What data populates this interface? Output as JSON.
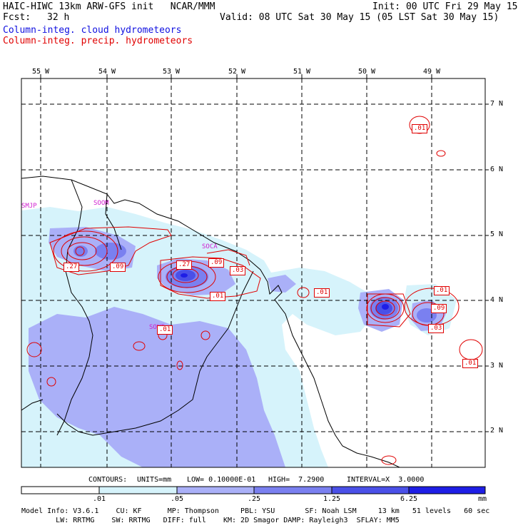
{
  "header": {
    "title": "HAIC-HIWC 13km ARW-GFS init   NCAR/MMM",
    "fcst_label": "Fcst:",
    "fcst_value": "32 h",
    "init": "Init: 00 UTC Fri 29 May 15",
    "valid": "Valid: 08 UTC Sat 30 May 15 (05 LST Sat 30 May 15)",
    "field1": "Column-integ. cloud hydrometeors",
    "field2": "Column-integ. precip. hydrometeors"
  },
  "colors": {
    "cloud_field": "#1010e0",
    "precip_field": "#e00000",
    "shade_levels": [
      "#ffffff",
      "#d6f3fb",
      "#aab0f8",
      "#7a80f0",
      "#4a50e8",
      "#1e1ee6"
    ]
  },
  "map": {
    "lon_labels": [
      "55 W",
      "54 W",
      "53 W",
      "52 W",
      "51 W",
      "50 W",
      "49 W"
    ],
    "lat_labels": [
      "7 N",
      "6 N",
      "5 N",
      "4 N",
      "3 N",
      "2 N"
    ],
    "stations": [
      "SMJP",
      "SOOM",
      "SOCA",
      "SONT"
    ],
    "contour_labels": [
      ".01",
      ".27",
      ".09",
      ".27",
      ".09",
      ".03",
      ".01",
      ".01",
      ".01",
      ".09",
      ".03",
      ".01",
      ".01"
    ]
  },
  "contour_info": {
    "contours": "CONTOURS:",
    "units": "UNITS=mm",
    "low": "LOW= 0.10000E-01",
    "high": "HIGH=  7.2900",
    "interval": "INTERVAL=X  3.0000"
  },
  "colorbar": {
    "labels": [
      ".01",
      ".05",
      ".25",
      "1.25",
      "6.25"
    ],
    "unit": "mm"
  },
  "footer": {
    "line1": "Model Info: V3.6.1    CU: KF      MP: Thompson     PBL: YSU       SF: Noah LSM     13 km   51 levels   60 sec",
    "line2": "        LW: RRTMG    SW: RRTMG   DIFF: full    KM: 2D Smagor DAMP: Rayleigh3  SFLAY: MM5"
  }
}
